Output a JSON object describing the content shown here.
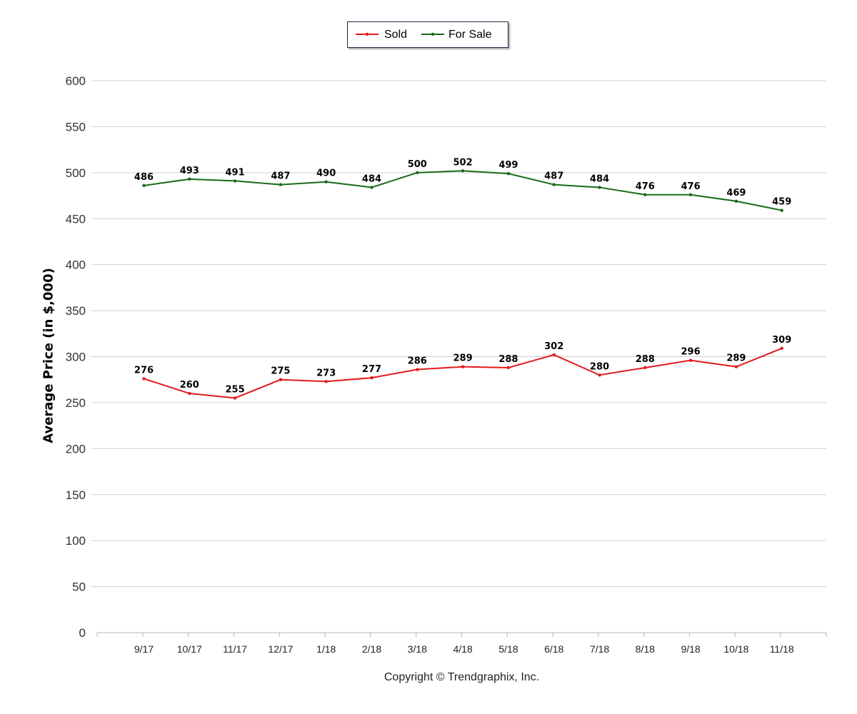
{
  "legend": {
    "items": [
      {
        "label": "Sold",
        "color": "#e31a1c"
      },
      {
        "label": "For Sale",
        "color": "#1a6b1a"
      }
    ]
  },
  "footer": {
    "copyright": "Copyright © Trendgraphix, Inc."
  },
  "chart_data": {
    "type": "line",
    "ylabel": "Average Price (in $,000)",
    "xlabel": "",
    "ylim": [
      0,
      600
    ],
    "yticks": [
      0,
      50,
      100,
      150,
      200,
      250,
      300,
      350,
      400,
      450,
      500,
      550,
      600
    ],
    "grid": true,
    "legend_position": "top-center",
    "categories": [
      "9/17",
      "10/17",
      "11/17",
      "12/17",
      "1/18",
      "2/18",
      "3/18",
      "4/18",
      "5/18",
      "6/18",
      "7/18",
      "8/18",
      "9/18",
      "10/18",
      "11/18"
    ],
    "series": [
      {
        "name": "Sold",
        "color": "#e31a1c",
        "values": [
          276,
          260,
          255,
          275,
          273,
          277,
          286,
          289,
          288,
          302,
          280,
          288,
          296,
          289,
          309
        ]
      },
      {
        "name": "For Sale",
        "color": "#1a6b1a",
        "values": [
          486,
          493,
          491,
          487,
          490,
          484,
          500,
          502,
          499,
          487,
          484,
          476,
          476,
          469,
          459
        ]
      }
    ]
  }
}
